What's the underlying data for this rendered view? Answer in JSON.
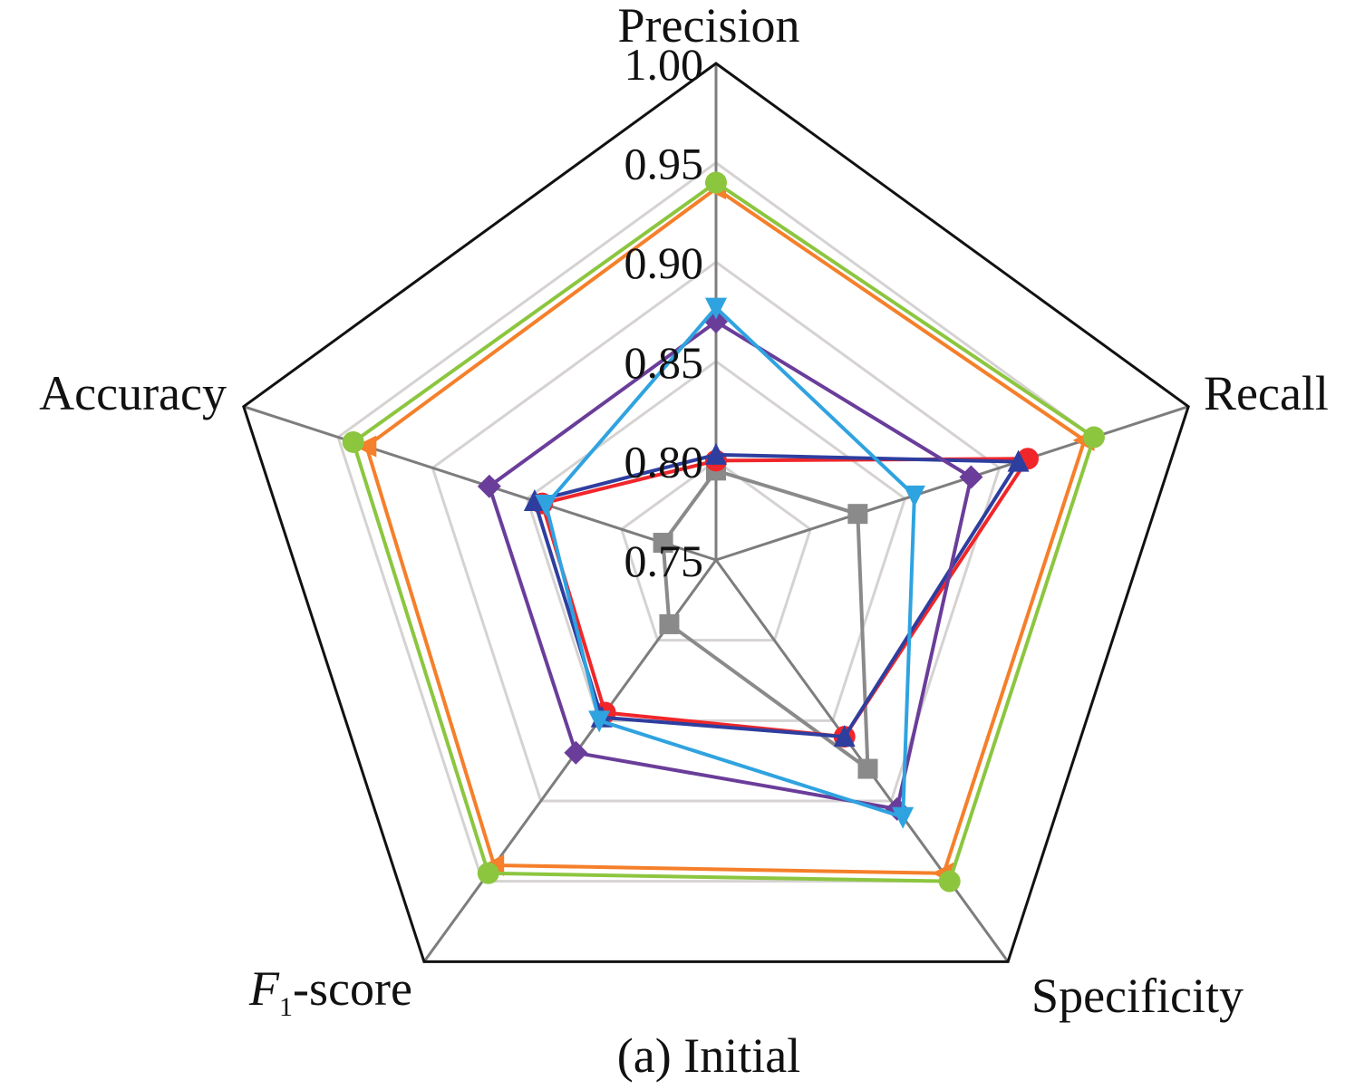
{
  "chart_data": {
    "type": "radar",
    "caption": "(a) Initial",
    "axes": [
      "Precision",
      "Recall",
      "Specificity",
      "F1-score",
      "Accuracy"
    ],
    "axis_label_parts": {
      "f1_italic": "F",
      "f1_sub": "1",
      "f1_rest": "-score"
    },
    "ticks": [
      "0.75",
      "0.80",
      "0.85",
      "0.90",
      "0.95",
      "1.00"
    ],
    "rlim": [
      0.75,
      1.0
    ],
    "grid": true,
    "legend": "none",
    "series": [
      {
        "color": "#8a8a8a",
        "marker": "square",
        "values": [
          0.795,
          0.825,
          0.88,
          0.79,
          0.778
        ]
      },
      {
        "color": "#f0262a",
        "marker": "circle",
        "values": [
          0.8,
          0.915,
          0.86,
          0.845,
          0.842
        ]
      },
      {
        "color": "#2e3e9f",
        "marker": "triangle-up",
        "values": [
          0.803,
          0.91,
          0.86,
          0.848,
          0.846
        ]
      },
      {
        "color": "#6a3d9a",
        "marker": "diamond",
        "values": [
          0.87,
          0.885,
          0.905,
          0.87,
          0.87
        ]
      },
      {
        "color": "#2fa3e0",
        "marker": "triangle-down",
        "values": [
          0.877,
          0.855,
          0.91,
          0.85,
          0.84
        ]
      },
      {
        "color": "#f57f2a",
        "marker": "triangle-left",
        "values": [
          0.937,
          0.945,
          0.945,
          0.94,
          0.935
        ]
      },
      {
        "color": "#8cc63f",
        "marker": "circle",
        "values": [
          0.94,
          0.95,
          0.95,
          0.945,
          0.942
        ]
      }
    ]
  }
}
